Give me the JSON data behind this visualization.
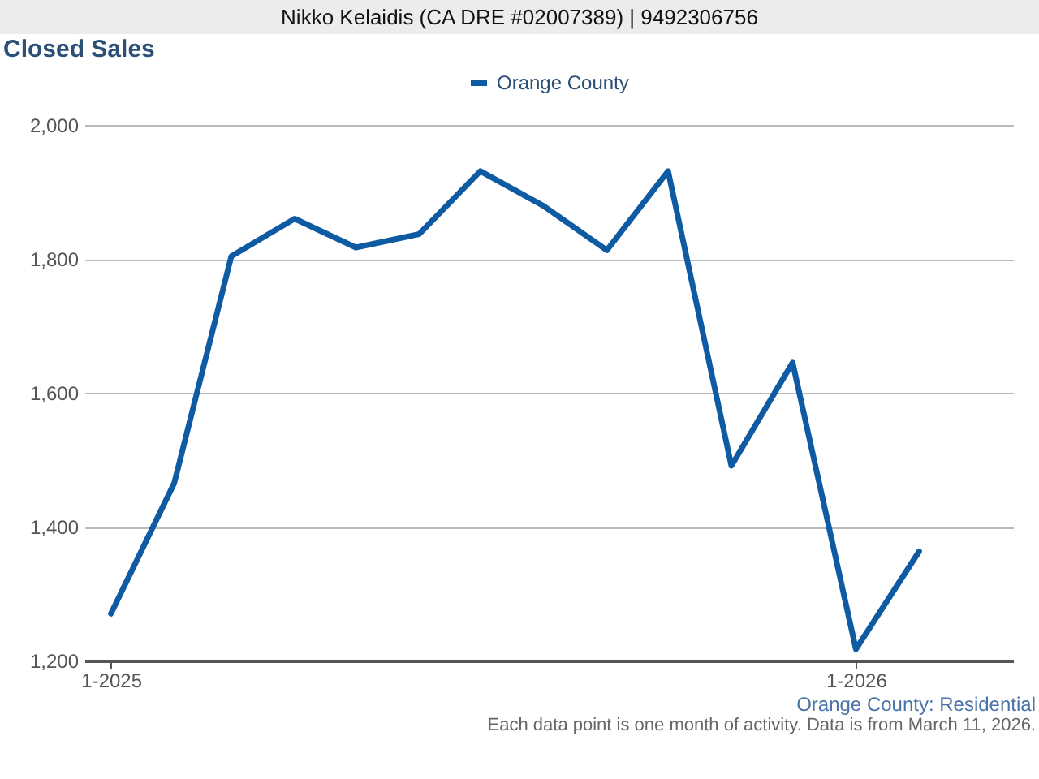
{
  "chart_data": {
    "type": "line",
    "title": "Closed Sales",
    "x": [
      "2025-01",
      "2025-02",
      "2025-03",
      "2025-04",
      "2025-05",
      "2025-06",
      "2025-07",
      "2025-08",
      "2025-09",
      "2025-10",
      "2025-11",
      "2025-12",
      "2026-01",
      "2026-02"
    ],
    "series": [
      {
        "name": "Orange County",
        "color": "#0e5ba3",
        "values": [
          1270,
          1465,
          1804,
          1860,
          1817,
          1837,
          1931,
          1879,
          1813,
          1931,
          1491,
          1645,
          1217,
          1363
        ]
      }
    ],
    "xlim": [
      "2024-12-19",
      "2026-03-19"
    ],
    "xticks": [
      {
        "value": "2025-01",
        "label": "1-2025"
      },
      {
        "value": "2026-01",
        "label": "1-2026"
      }
    ],
    "ylim": [
      1200,
      2000
    ],
    "yticks": [
      {
        "value": 1200,
        "label": "1,200"
      },
      {
        "value": 1400,
        "label": "1,400"
      },
      {
        "value": 1600,
        "label": "1,600"
      },
      {
        "value": 1800,
        "label": "1,800"
      },
      {
        "value": 2000,
        "label": "2,000"
      }
    ],
    "grid": "y",
    "legend": "top",
    "marker": "none",
    "line_style": "solid",
    "annotations": [
      "Nikko Kelaidis (CA DRE #02007389) | 9492306756",
      "Orange County: Residential",
      "Each data point is one month of activity. Data is from March 11, 2026."
    ]
  }
}
